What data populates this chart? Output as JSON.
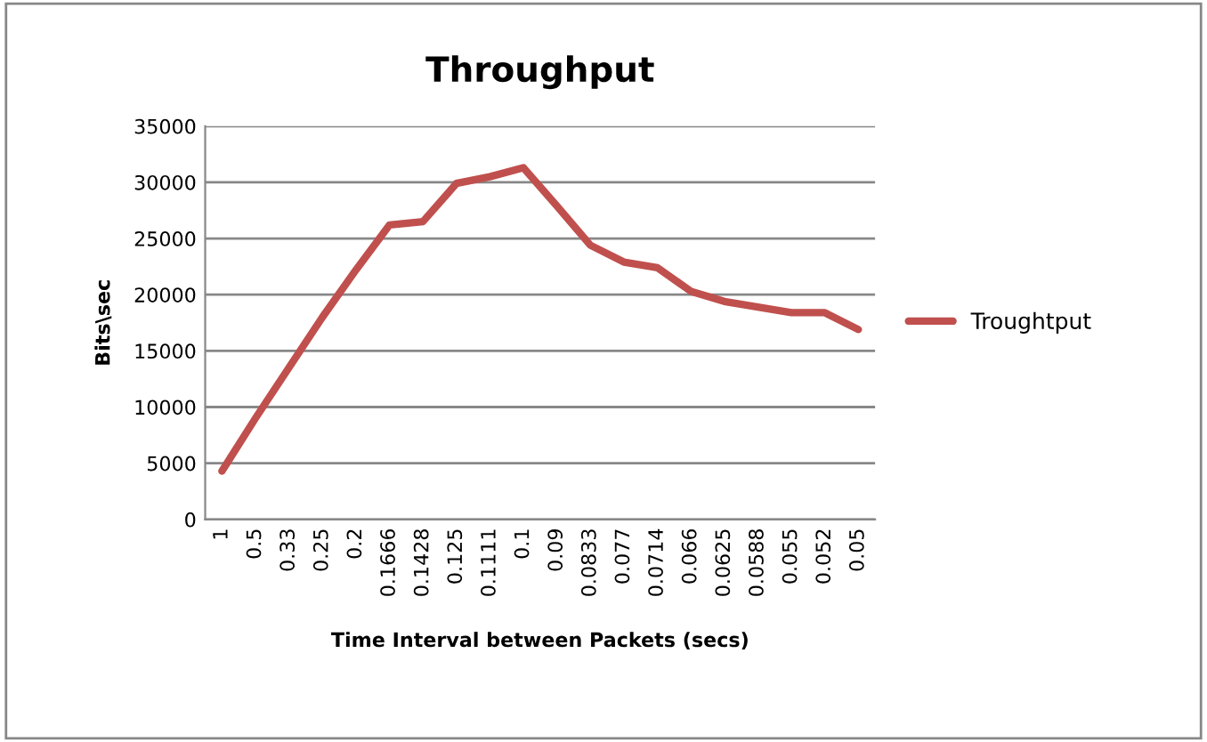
{
  "chart_data": {
    "type": "line",
    "title": "Throughput",
    "xlabel": "Time Interval between Packets (secs)",
    "ylabel": "Bits\\sec",
    "categories": [
      "1",
      "0.5",
      "0.33",
      "0.25",
      "0.2",
      "0.1666",
      "0.1428",
      "0.125",
      "0.1111",
      "0.1",
      "0.09",
      "0.0833",
      "0.077",
      "0.0714",
      "0.066",
      "0.0625",
      "0.0588",
      "0.055",
      "0.052",
      "0.05"
    ],
    "series": [
      {
        "name": "Troughtput",
        "color": "#c0504d",
        "values": [
          4300,
          9000,
          13500,
          18000,
          22200,
          26200,
          26500,
          29900,
          30500,
          31300,
          27900,
          24400,
          22900,
          22400,
          20300,
          19400,
          18900,
          18400,
          18400,
          16900
        ]
      }
    ],
    "ylim": [
      0,
      35000
    ],
    "yticks": [
      0,
      5000,
      10000,
      15000,
      20000,
      25000,
      30000,
      35000
    ],
    "grid": "y",
    "legend": "right",
    "marker": "none",
    "line_style": "solid"
  }
}
